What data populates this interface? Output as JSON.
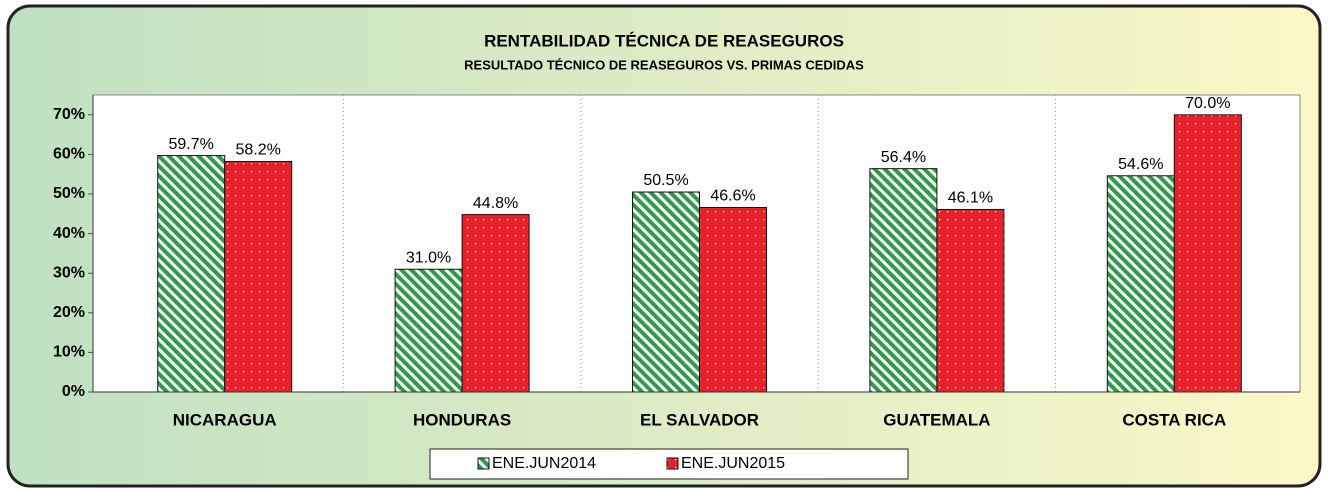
{
  "chart_data": {
    "type": "bar",
    "title": "RENTABILIDAD TÉCNICA DE REASEGUROS",
    "subtitle": "RESULTADO TÉCNICO DE REASEGUROS  VS. PRIMAS CEDIDAS",
    "categories": [
      "NICARAGUA",
      "HONDURAS",
      "EL SALVADOR",
      "GUATEMALA",
      "COSTA RICA"
    ],
    "series": [
      {
        "name": "ENE.JUN2014",
        "color": "#2f9a4a",
        "values": [
          59.7,
          31.0,
          50.5,
          56.4,
          54.6
        ],
        "value_labels": [
          "59.7%",
          "31.0%",
          "50.5%",
          "56.4%",
          "54.6%"
        ]
      },
      {
        "name": "ENE.JUN2015",
        "color": "#e8202a",
        "values": [
          58.2,
          44.8,
          46.6,
          46.1,
          70.0
        ],
        "value_labels": [
          "58.2%",
          "44.8%",
          "46.6%",
          "46.1%",
          "70.0%"
        ]
      }
    ],
    "ylim": [
      0,
      75
    ],
    "yticks": [
      {
        "value": 0,
        "label": "0%"
      },
      {
        "value": 10,
        "label": "10%"
      },
      {
        "value": 20,
        "label": "20%"
      },
      {
        "value": 30,
        "label": "30%"
      },
      {
        "value": 40,
        "label": "40%"
      },
      {
        "value": 50,
        "label": "50%"
      },
      {
        "value": 60,
        "label": "60%"
      },
      {
        "value": 70,
        "label": "70%"
      }
    ],
    "grid": false,
    "legend": "bottom"
  }
}
